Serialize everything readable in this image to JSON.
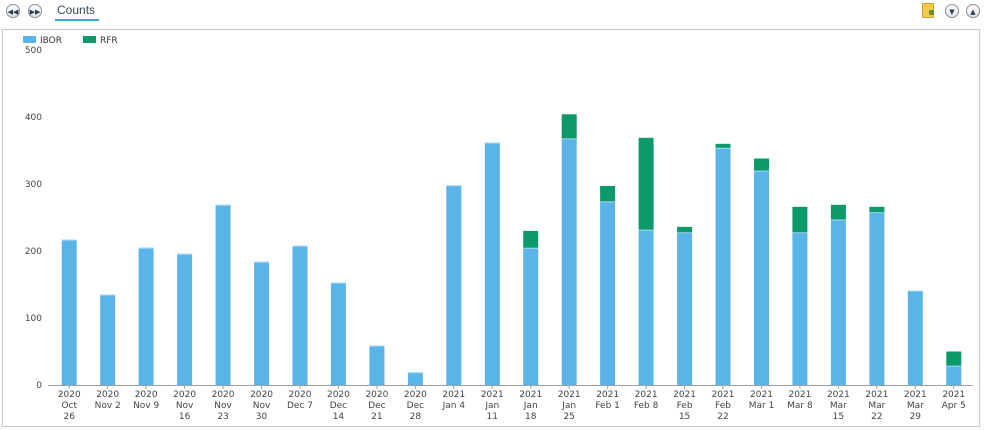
{
  "toolbar": {
    "back_glyph": "◀◀",
    "forward_glyph": "▶▶",
    "tab_label": "Counts",
    "collapse_glyph": "▼",
    "expand_glyph": "▲",
    "icons": [
      "rewind-icon",
      "fast-forward-icon",
      "document-icon",
      "collapse-icon",
      "expand-icon"
    ]
  },
  "chart_data": {
    "type": "bar",
    "stacked": true,
    "categories": [
      [
        "2020",
        "Oct",
        "26"
      ],
      [
        "2020",
        "Nov 2"
      ],
      [
        "2020",
        "Nov 9"
      ],
      [
        "2020",
        "Nov",
        "16"
      ],
      [
        "2020",
        "Nov",
        "23"
      ],
      [
        "2020",
        "Nov",
        "30"
      ],
      [
        "2020",
        "Dec 7"
      ],
      [
        "2020",
        "Dec",
        "14"
      ],
      [
        "2020",
        "Dec",
        "21"
      ],
      [
        "2020",
        "Dec",
        "28"
      ],
      [
        "2021",
        "Jan 4"
      ],
      [
        "2021",
        "Jan",
        "11"
      ],
      [
        "2021",
        "Jan",
        "18"
      ],
      [
        "2021",
        "Jan",
        "25"
      ],
      [
        "2021",
        "Feb 1"
      ],
      [
        "2021",
        "Feb 8"
      ],
      [
        "2021",
        "Feb",
        "15"
      ],
      [
        "2021",
        "Feb",
        "22"
      ],
      [
        "2021",
        "Mar 1"
      ],
      [
        "2021",
        "Mar 8"
      ],
      [
        "2021",
        "Mar",
        "15"
      ],
      [
        "2021",
        "Mar",
        "22"
      ],
      [
        "2021",
        "Mar",
        "29"
      ],
      [
        "2021",
        "Apr 5"
      ]
    ],
    "series": [
      {
        "name": "IBOR",
        "color": "#5ab4e8",
        "values": [
          217,
          135,
          205,
          196,
          269,
          184,
          208,
          153,
          59,
          19,
          298,
          362,
          205,
          368,
          274,
          232,
          228,
          354,
          320,
          228,
          247,
          258,
          141,
          29
        ]
      },
      {
        "name": "RFR",
        "color": "#0c9a6a",
        "values": [
          0,
          0,
          0,
          0,
          0,
          0,
          0,
          0,
          0,
          0,
          0,
          0,
          25,
          36,
          23,
          137,
          8,
          6,
          18,
          38,
          22,
          8,
          0,
          21
        ]
      }
    ],
    "yticks": [
      0,
      100,
      200,
      300,
      400,
      500
    ],
    "ylim": [
      0,
      500
    ],
    "legend": "top-left",
    "grid": false
  }
}
